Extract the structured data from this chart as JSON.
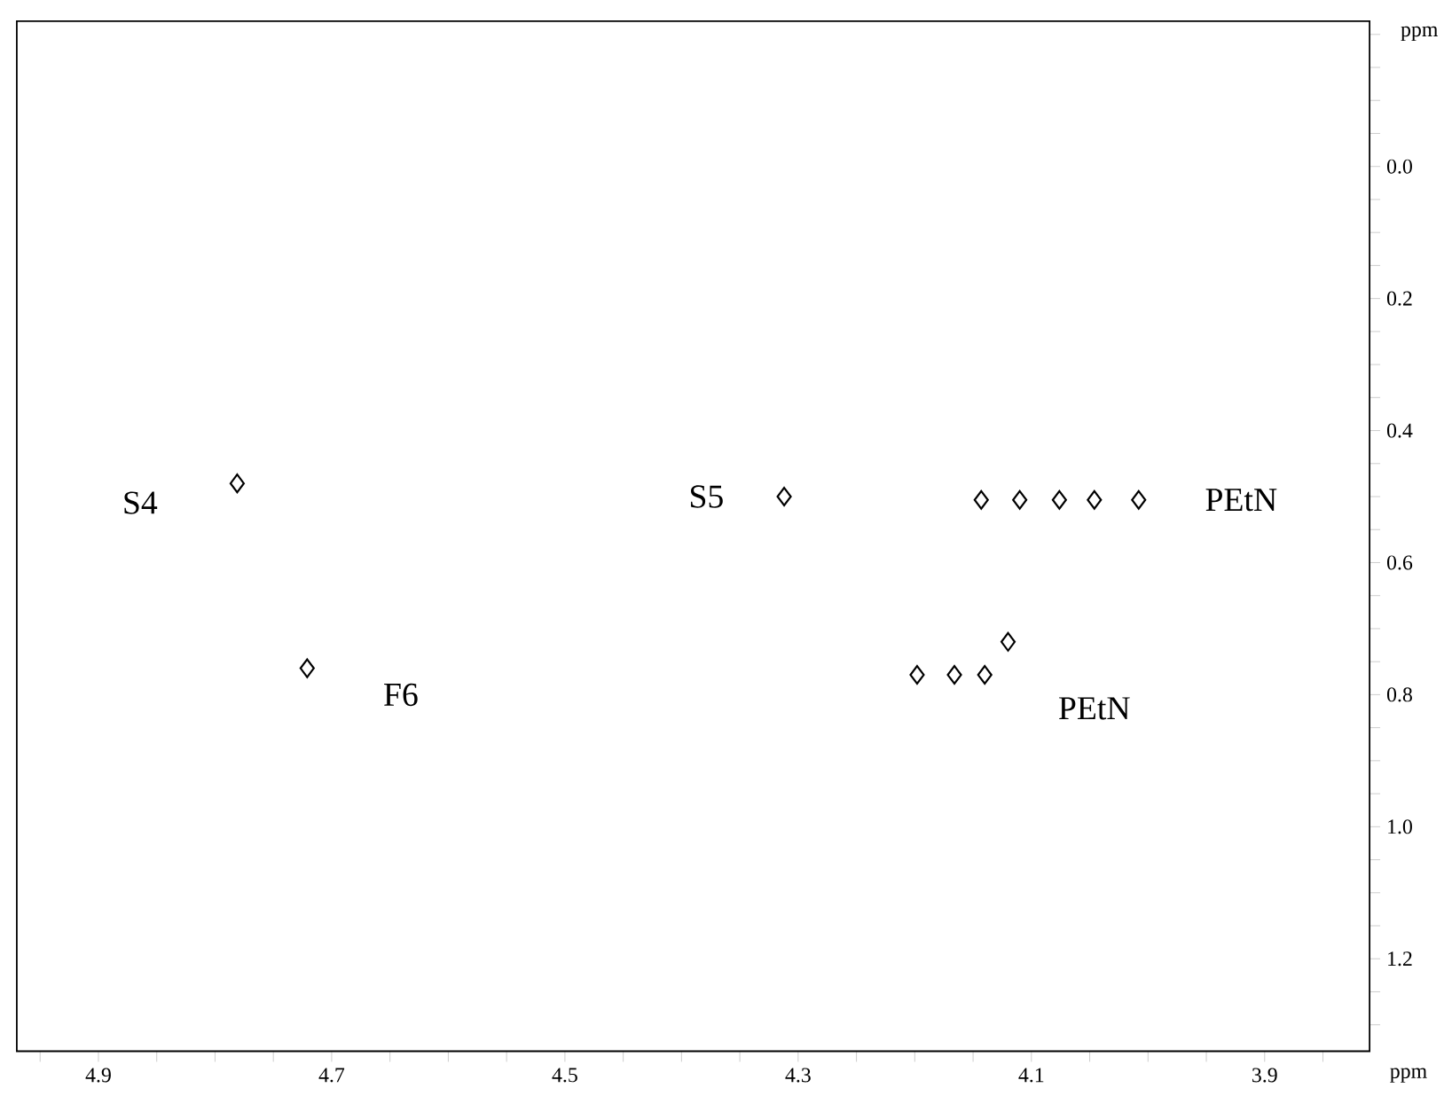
{
  "chart_data": {
    "type": "scatter",
    "xlabel": "ppm",
    "ylabel": "ppm",
    "x": [
      4.781,
      4.721,
      4.312,
      4.143,
      4.11,
      4.076,
      4.046,
      4.008,
      4.198,
      4.166,
      4.14,
      4.12
    ],
    "values": [
      0.48,
      0.76,
      0.5,
      0.505,
      0.505,
      0.505,
      0.505,
      0.505,
      0.77,
      0.77,
      0.77,
      0.72
    ],
    "color": "#000000",
    "marker": "diamond",
    "grid": false,
    "xlim": [
      4.97,
      3.81
    ],
    "ylim": [
      1.34,
      -0.22
    ],
    "xticks": [
      {
        "value": 4.95,
        "label": null
      },
      4.9,
      {
        "value": 4.85,
        "label": null
      },
      {
        "value": 4.8,
        "label": null
      },
      {
        "value": 4.75,
        "label": null
      },
      4.7,
      {
        "value": 4.65,
        "label": null
      },
      {
        "value": 4.6,
        "label": null
      },
      {
        "value": 4.55,
        "label": null
      },
      4.5,
      {
        "value": 4.45,
        "label": null
      },
      {
        "value": 4.4,
        "label": null
      },
      {
        "value": 4.35,
        "label": null
      },
      4.3,
      {
        "value": 4.25,
        "label": null
      },
      {
        "value": 4.2,
        "label": null
      },
      {
        "value": 4.15,
        "label": null
      },
      4.1,
      {
        "value": 4.05,
        "label": null
      },
      {
        "value": 4.0,
        "label": null
      },
      {
        "value": 3.95,
        "label": null
      },
      3.9,
      {
        "value": 3.85,
        "label": null
      }
    ],
    "yticks": [
      {
        "value": -0.2,
        "label": null
      },
      {
        "value": -0.15,
        "label": null
      },
      {
        "value": -0.1,
        "label": null
      },
      {
        "value": -0.05,
        "label": null
      },
      {
        "value": 0.0,
        "label": "0.0"
      },
      {
        "value": 0.05,
        "label": null
      },
      {
        "value": 0.1,
        "label": null
      },
      {
        "value": 0.15,
        "label": null
      },
      0.2,
      {
        "value": 0.25,
        "label": null
      },
      {
        "value": 0.3,
        "label": null
      },
      {
        "value": 0.35,
        "label": null
      },
      0.4,
      {
        "value": 0.45,
        "label": null
      },
      {
        "value": 0.5,
        "label": null
      },
      {
        "value": 0.55,
        "label": null
      },
      0.6,
      {
        "value": 0.65,
        "label": null
      },
      {
        "value": 0.7,
        "label": null
      },
      {
        "value": 0.75,
        "label": null
      },
      0.8,
      {
        "value": 0.85,
        "label": null
      },
      {
        "value": 0.9,
        "label": null
      },
      {
        "value": 0.95,
        "label": null
      },
      {
        "value": 1.0,
        "label": "1.0"
      },
      {
        "value": 1.05,
        "label": null
      },
      {
        "value": 1.1,
        "label": null
      },
      {
        "value": 1.15,
        "label": null
      },
      1.2,
      {
        "value": 1.25,
        "label": null
      },
      {
        "value": 1.3,
        "label": null
      }
    ],
    "annotations": [
      {
        "text": "S4",
        "x": 4.781,
        "y": 0.48
      },
      {
        "text": "F6",
        "x": 4.721,
        "y": 0.76
      },
      {
        "text": "S5",
        "x": 4.312,
        "y": 0.5
      },
      {
        "text": "PEtN",
        "x": 4.008,
        "y": 0.505
      },
      {
        "text": "PEtN",
        "x": 4.14,
        "y": 0.77
      }
    ]
  }
}
